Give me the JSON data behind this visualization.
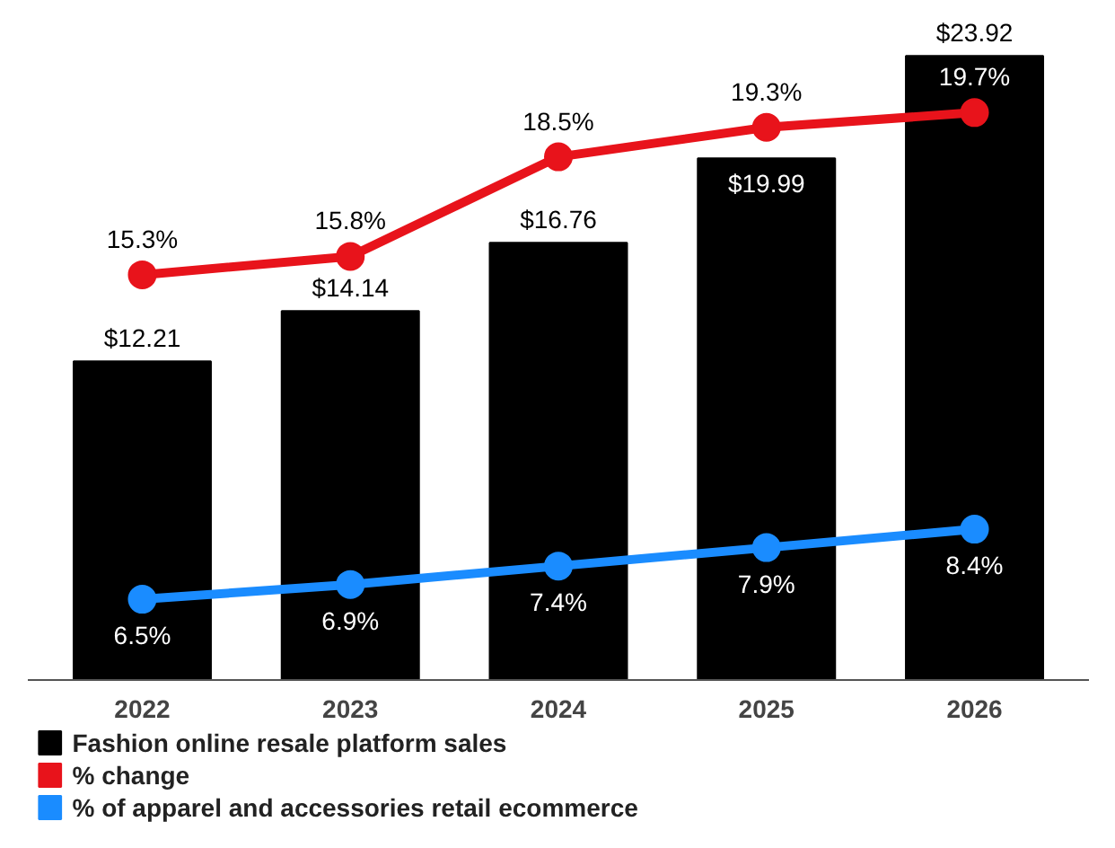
{
  "chart_data": {
    "type": "bar",
    "categories": [
      "2022",
      "2023",
      "2024",
      "2025",
      "2026"
    ],
    "tick_labels": "x",
    "legend": "bottom",
    "data_labels": true,
    "series": [
      {
        "name": "Fashion online resale platform sales",
        "color": "#000000",
        "values": [
          12.21,
          14.14,
          16.76,
          19.99,
          23.92
        ],
        "value_labels": [
          "$12.21",
          "$14.14",
          "$16.76",
          "$19.99",
          "$23.92"
        ]
      },
      {
        "name": "% change",
        "type": "line",
        "axis": "y2",
        "marker": "circle",
        "color": "#e8131b",
        "values": [
          15.3,
          15.8,
          18.5,
          19.3,
          19.7
        ],
        "value_labels": [
          "15.3%",
          "15.8%",
          "18.5%",
          "19.3%",
          "19.7%"
        ]
      },
      {
        "name": "% of apparel and accessories retail ecommerce",
        "type": "line",
        "axis": "y2",
        "marker": "circle",
        "color": "#1a8cff",
        "values": [
          6.5,
          6.9,
          7.4,
          7.9,
          8.4
        ],
        "value_labels": [
          "6.5%",
          "6.9%",
          "7.4%",
          "7.9%",
          "8.4%"
        ]
      }
    ]
  }
}
